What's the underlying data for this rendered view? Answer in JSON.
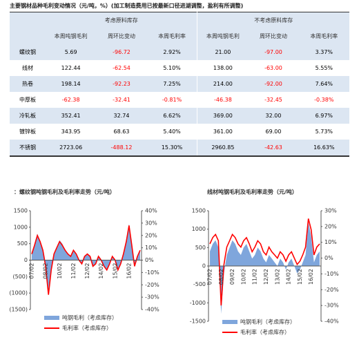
{
  "title": "主要钢材品种毛利变动情况（元/吨，%）(加工制造费用已按最新口径进湖调整，盈利有所调整)",
  "table": {
    "group_headers": [
      "考虑原料库存",
      "不考虑原料库存"
    ],
    "columns": [
      "本周吨钢毛利",
      "周环比变动",
      "本周毛利率",
      "本周吨钢毛利",
      "周环比变动",
      "本周毛利率"
    ],
    "rows": [
      [
        "螺纹钢",
        "5.69",
        "-96.72",
        "2.92%",
        "21.00",
        "-97.00",
        "3.37%"
      ],
      [
        "线材",
        "122.44",
        "-62.54",
        "5.10%",
        "138.00",
        "-63.00",
        "5.55%"
      ],
      [
        "热卷",
        "198.14",
        "-92.23",
        "7.25%",
        "214.00",
        "-92.00",
        "7.64%"
      ],
      [
        "中厚板",
        "-62.38",
        "-32.41",
        "-0.81%",
        "-46.38",
        "-32.45",
        "-0.38%"
      ],
      [
        "冷轧板",
        "352.41",
        "32.74",
        "6.62%",
        "369.00",
        "32.00",
        "6.97%"
      ],
      [
        "镀锌板",
        "343.95",
        "68.63",
        "5.40%",
        "361.00",
        "69.00",
        "5.73%"
      ],
      [
        "不锈钢",
        "2723.06",
        "-488.12",
        "15.30%",
        "2960.85",
        "-42.63",
        "16.63%"
      ]
    ]
  },
  "charts": [
    {
      "type": "line",
      "title": "：螺纹钢吨钢毛利及毛利率走势（元/吨）",
      "categories": [
        "07/02",
        null,
        null,
        null,
        null,
        "08/02",
        null,
        null,
        null,
        null,
        "10/02",
        null,
        null,
        null,
        null,
        "11/02",
        null,
        null,
        null,
        null,
        "12/02",
        null,
        null,
        null,
        null,
        "14/02",
        null,
        null,
        null,
        null,
        "15/02",
        null,
        null,
        null,
        null,
        "16/02",
        null,
        null,
        null,
        null
      ],
      "ylim": [
        -1500,
        1500
      ],
      "yticks": [
        {
          "value": 1500,
          "label": "1500"
        },
        {
          "value": 1000,
          "label": "1000"
        },
        {
          "value": 500,
          "label": "500"
        },
        0,
        {
          "value": -500,
          "label": "(500)"
        },
        {
          "value": -1000,
          "label": "(1000)"
        },
        {
          "value": -1500,
          "label": "(1500)"
        }
      ],
      "y2lim": [
        -40,
        40
      ],
      "y2ticks": [
        {
          "value": 40,
          "label": "40%"
        },
        {
          "value": 30,
          "label": "30%"
        },
        {
          "value": 20,
          "label": "20%"
        },
        {
          "value": 10,
          "label": "10%"
        },
        {
          "value": 0,
          "label": "0%"
        },
        {
          "value": -10,
          "label": "-10%"
        },
        {
          "value": -20,
          "label": "-20%"
        },
        {
          "value": -30,
          "label": "-30%"
        },
        {
          "value": -40,
          "label": "-40%"
        }
      ],
      "series": [
        {
          "name": "吨钢毛利（考虑库存）",
          "color": "#7fa6dc",
          "kind": "area",
          "values": [
            200,
            500,
            800,
            600,
            300,
            -200,
            -900,
            -300,
            200,
            400,
            600,
            500,
            300,
            200,
            100,
            300,
            200,
            0,
            -100,
            100,
            200,
            100,
            -200,
            -100,
            100,
            0,
            -200,
            -300,
            -100,
            100,
            0,
            -300,
            -100,
            200,
            600,
            1100,
            500,
            -200,
            100,
            300
          ]
        },
        {
          "name": "毛利率（考虑库存）",
          "color": "#ff0000",
          "axis": "y2",
          "values": [
            5,
            12,
            20,
            15,
            8,
            -5,
            -28,
            -8,
            5,
            10,
            15,
            12,
            8,
            5,
            3,
            8,
            5,
            0,
            -3,
            3,
            5,
            3,
            -5,
            -3,
            3,
            0,
            -5,
            -8,
            -3,
            3,
            0,
            -8,
            -3,
            5,
            15,
            28,
            12,
            -5,
            3,
            8
          ]
        }
      ]
    },
    {
      "type": "line",
      "title": "线材吨钢毛利及毛利率走势（元/吨）",
      "categories": [
        "07/02",
        null,
        null,
        null,
        "08/02",
        null,
        null,
        null,
        "09/02",
        null,
        null,
        null,
        "10/02",
        null,
        null,
        null,
        "11/02",
        null,
        null,
        null,
        "12/02",
        null,
        null,
        null,
        "13/02",
        null,
        null,
        null,
        "14/02",
        null,
        null,
        null,
        "15/02",
        null,
        null,
        null,
        "16/02",
        null,
        null,
        null
      ],
      "ylim": [
        -1500,
        1500
      ],
      "yticks": [
        1500,
        1000,
        500,
        0,
        -500,
        -1000,
        -1500
      ],
      "y2lim": [
        -40,
        30
      ],
      "y2ticks": [
        {
          "value": 30,
          "label": "30%"
        },
        {
          "value": 20,
          "label": "20%"
        },
        {
          "value": 10,
          "label": "10%"
        },
        {
          "value": 0,
          "label": "0%"
        },
        {
          "value": -10,
          "label": "-10%"
        },
        {
          "value": -20,
          "label": "-20%"
        },
        {
          "value": -30,
          "label": "-30%"
        },
        {
          "value": -40,
          "label": "-40%"
        }
      ],
      "series": [
        {
          "name": "吨钢毛利（考虑库存）",
          "color": "#7fa6dc",
          "kind": "area",
          "values": [
            400,
            600,
            700,
            500,
            -1300,
            -200,
            300,
            500,
            700,
            600,
            400,
            300,
            500,
            600,
            400,
            200,
            300,
            500,
            400,
            200,
            100,
            300,
            200,
            100,
            0,
            200,
            100,
            -100,
            100,
            200,
            0,
            -200,
            -100,
            100,
            300,
            1200,
            800,
            100,
            300,
            400
          ]
        },
        {
          "name": "毛利率（考虑库存）",
          "color": "#ff0000",
          "axis": "y2",
          "values": [
            9,
            13,
            15,
            11,
            -30,
            -4,
            7,
            11,
            15,
            13,
            9,
            7,
            11,
            13,
            9,
            4,
            7,
            11,
            9,
            4,
            2,
            7,
            4,
            2,
            0,
            4,
            2,
            -2,
            2,
            4,
            0,
            -4,
            -2,
            2,
            7,
            25,
            18,
            2,
            7,
            9
          ]
        }
      ]
    }
  ]
}
